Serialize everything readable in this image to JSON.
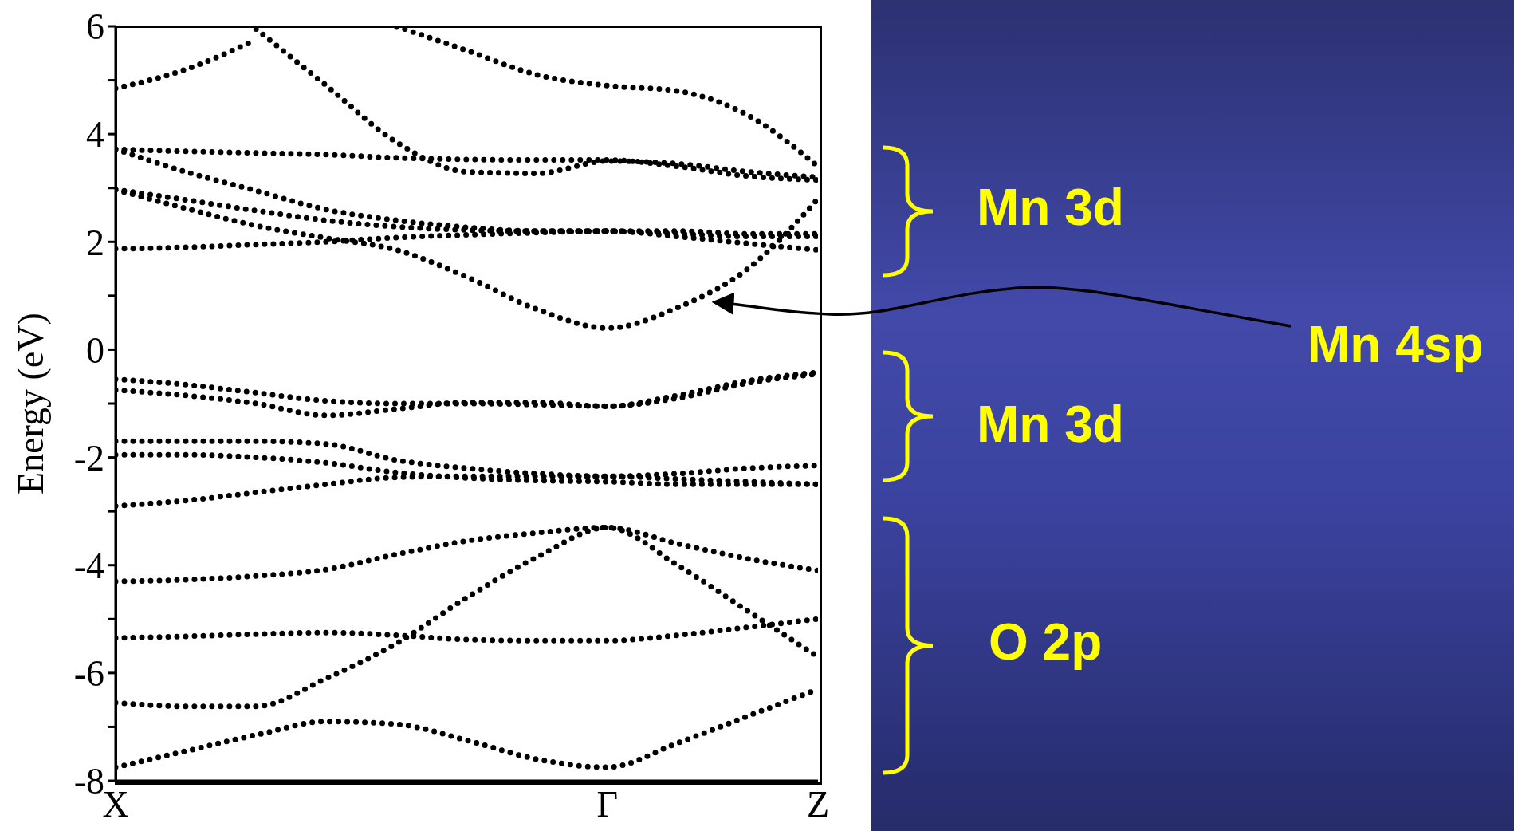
{
  "chart_data": {
    "type": "line",
    "ylabel": "Energy (eV)",
    "categories": [
      "X",
      null,
      null,
      null,
      null,
      null,
      null,
      "Γ",
      null,
      null,
      "Z"
    ],
    "ylim": [
      -8,
      6
    ],
    "yticks": [
      -8,
      {
        "value": -7,
        "label": null
      },
      -6,
      {
        "value": -5,
        "label": null
      },
      -4,
      {
        "value": -3,
        "label": null
      },
      -2,
      {
        "value": -1,
        "label": null
      },
      0,
      {
        "value": 1,
        "label": null
      },
      2,
      {
        "value": 3,
        "label": null
      },
      4,
      {
        "value": 5,
        "label": null
      },
      6
    ],
    "grid": false,
    "marker": "none",
    "line_style": "dotted",
    "series": [
      {
        "color": "#000000",
        "values": [
          4.85,
          5.2,
          5.75,
          null,
          null,
          null,
          null,
          null,
          null,
          null,
          null
        ]
      },
      {
        "color": "#000000",
        "values": [
          null,
          null,
          5.95,
          4.9,
          3.85,
          3.3,
          3.27,
          3.5,
          3.45,
          3.3,
          3.2
        ]
      },
      {
        "color": "#000000",
        "values": [
          null,
          null,
          null,
          null,
          6.0,
          5.55,
          5.1,
          4.9,
          4.8,
          4.35,
          3.4
        ]
      },
      {
        "color": "#000000",
        "values": [
          3.72,
          3.68,
          3.65,
          3.62,
          3.56,
          3.53,
          3.52,
          3.52,
          3.4,
          3.22,
          3.15
        ]
      },
      {
        "color": "#000000",
        "values": [
          3.72,
          3.3,
          2.95,
          2.6,
          2.4,
          2.27,
          2.2,
          2.2,
          2.15,
          2.1,
          2.1
        ]
      },
      {
        "color": "#000000",
        "values": [
          2.97,
          2.78,
          2.58,
          2.4,
          2.28,
          2.22,
          2.2,
          2.2,
          2.2,
          2.15,
          2.15
        ]
      },
      {
        "color": "#000000",
        "values": [
          2.97,
          2.62,
          2.3,
          2.07,
          1.85,
          1.35,
          0.75,
          0.4,
          0.78,
          1.5,
          2.8
        ]
      },
      {
        "color": "#000000",
        "values": [
          1.87,
          1.9,
          1.95,
          2.0,
          2.08,
          2.13,
          2.17,
          2.2,
          2.1,
          1.97,
          1.85
        ]
      },
      {
        "color": "#000000",
        "values": [
          -0.55,
          -0.65,
          -0.8,
          -0.95,
          -1.0,
          -1.0,
          -1.02,
          -1.05,
          -0.85,
          -0.58,
          -0.42
        ]
      },
      {
        "color": "#000000",
        "values": [
          -0.75,
          -0.85,
          -1.0,
          -1.22,
          -1.1,
          -0.98,
          -0.98,
          -1.05,
          -0.9,
          -0.62,
          -0.45
        ]
      },
      {
        "color": "#000000",
        "values": [
          -1.7,
          -1.7,
          -1.7,
          -1.75,
          -2.05,
          -2.2,
          -2.3,
          -2.35,
          -2.3,
          -2.2,
          -2.15
        ]
      },
      {
        "color": "#000000",
        "values": [
          -1.95,
          -1.95,
          -2.0,
          -2.1,
          -2.28,
          -2.38,
          -2.43,
          -2.45,
          -2.5,
          -2.5,
          -2.5
        ]
      },
      {
        "color": "#000000",
        "values": [
          -2.9,
          -2.8,
          -2.65,
          -2.5,
          -2.37,
          -2.35,
          -2.35,
          -2.35,
          -2.4,
          -2.45,
          -2.5
        ]
      },
      {
        "color": "#000000",
        "values": [
          -4.3,
          -4.27,
          -4.2,
          -4.08,
          -3.8,
          -3.55,
          -3.4,
          -3.3,
          -3.6,
          -3.88,
          -4.1
        ]
      },
      {
        "color": "#000000",
        "values": [
          -5.35,
          -5.32,
          -5.28,
          -5.25,
          -5.3,
          -5.38,
          -5.4,
          -5.4,
          -5.3,
          -5.15,
          -5.0
        ]
      },
      {
        "color": "#000000",
        "values": [
          -6.55,
          -6.62,
          -6.62,
          -6.1,
          -5.45,
          -4.6,
          -3.85,
          -3.3,
          -4.0,
          -4.85,
          -5.7
        ]
      },
      {
        "color": "#000000",
        "values": [
          -7.75,
          -7.45,
          -7.15,
          -6.9,
          -6.95,
          -7.25,
          -7.6,
          -7.75,
          -7.3,
          -6.8,
          -6.3
        ]
      }
    ],
    "annotations": [
      "Mn 3d",
      "Mn 3d",
      "O 2p",
      "Mn 4sp"
    ]
  }
}
